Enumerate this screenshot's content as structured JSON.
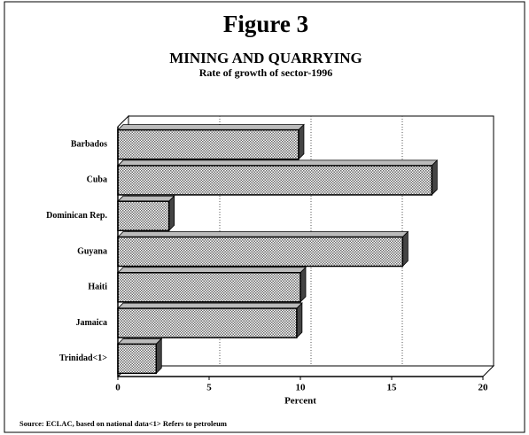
{
  "chart_data": {
    "type": "barh",
    "title": "Figure 3",
    "subtitle": "MINING AND QUARRYING",
    "description": "Rate of growth of sector-1996",
    "x_label": "Percent",
    "source": "Source: ECLAC, based on national data<1> Refers to petroleum",
    "categories": [
      "Barbados",
      "Cuba",
      "Dominican Rep.",
      "Guyana",
      "Haiti",
      "Jamaica",
      "Trinidad<1>"
    ],
    "values": [
      9.9,
      17.2,
      2.8,
      15.6,
      10.0,
      9.8,
      2.1
    ],
    "color": "#9a9a9a",
    "xlim": [
      0,
      20
    ],
    "xticks": [
      0,
      5,
      10,
      15,
      20
    ],
    "grid": true
  }
}
